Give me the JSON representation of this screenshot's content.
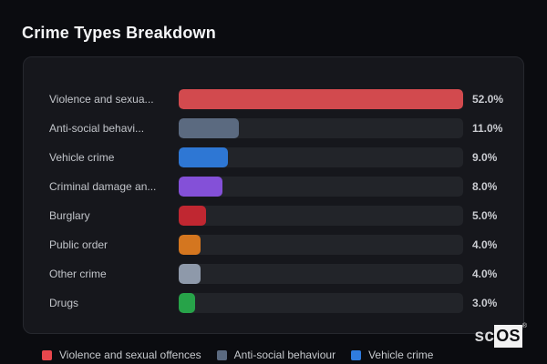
{
  "page": {
    "title": "Crime Types Breakdown"
  },
  "chart_data": {
    "type": "bar",
    "orientation": "horizontal",
    "title": "Crime Types Breakdown",
    "max_scale": 52,
    "grid": false,
    "legend_position": "bottom",
    "rows": [
      {
        "label": "Violence and sexua...",
        "value": 52.0,
        "pct": "52.0%",
        "color": "#d24a4e"
      },
      {
        "label": "Anti-social behavi...",
        "value": 11.0,
        "pct": "11.0%",
        "color": "#5b6a80"
      },
      {
        "label": "Vehicle crime",
        "value": 9.0,
        "pct": "9.0%",
        "color": "#2e77d4"
      },
      {
        "label": "Criminal damage an...",
        "value": 8.0,
        "pct": "8.0%",
        "color": "#8450d8"
      },
      {
        "label": "Burglary",
        "value": 5.0,
        "pct": "5.0%",
        "color": "#c02731"
      },
      {
        "label": "Public order",
        "value": 4.0,
        "pct": "4.0%",
        "color": "#d4761f"
      },
      {
        "label": "Other crime",
        "value": 4.0,
        "pct": "4.0%",
        "color": "#8e99aa"
      },
      {
        "label": "Drugs",
        "value": 3.0,
        "pct": "3.0%",
        "color": "#27a349"
      }
    ],
    "legend": [
      {
        "label": "Violence and sexual offences",
        "color": "#e8474d"
      },
      {
        "label": "Anti-social behaviour",
        "color": "#5b6a80"
      },
      {
        "label": "Vehicle crime",
        "color": "#2f7ce0"
      }
    ]
  },
  "logo": {
    "prefix": "sc",
    "suffix": "OS",
    "registered": "®"
  },
  "colors": {
    "page_bg": "#0b0c10",
    "panel_bg": "#16171c",
    "panel_border": "#26282e",
    "track_bg": "#222429",
    "label_text": "#c2c5ca",
    "value_text": "#caccd1",
    "title_text": "#f5f6f8"
  }
}
